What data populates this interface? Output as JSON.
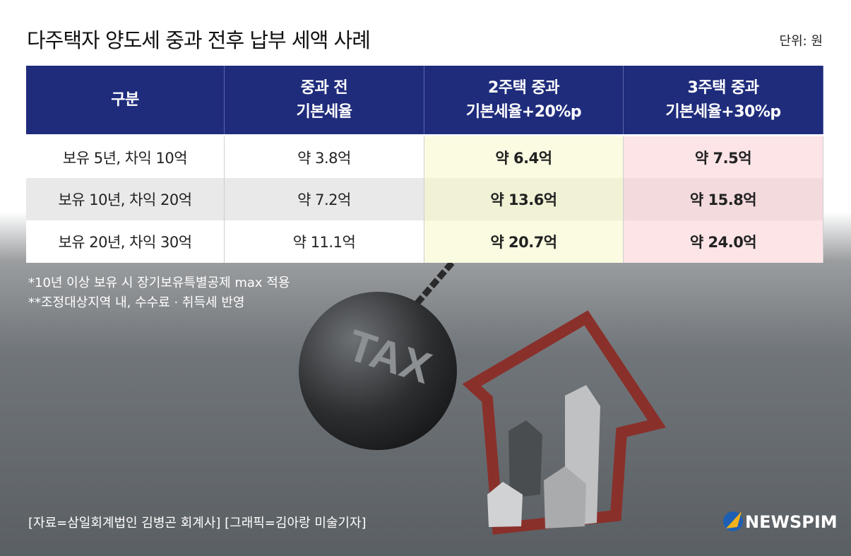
{
  "header": {
    "title": "다주택자 양도세 중과 전후 납부 세액 사례",
    "unit": "단위: 원"
  },
  "table": {
    "columns": [
      [
        "구분"
      ],
      [
        "중과 전",
        "기본세율"
      ],
      [
        "2주택 중과",
        "기본세율+20%p"
      ],
      [
        "3주택 중과",
        "기본세율+30%p"
      ]
    ],
    "rows": [
      [
        "보유 5년, 차익 10억",
        "약 3.8억",
        "약 6.4억",
        "약 7.5억"
      ],
      [
        "보유 10년, 차익 20억",
        "약 7.2억",
        "약 13.6억",
        "약 15.8억"
      ],
      [
        "보유 20년, 차익 30억",
        "약 11.1억",
        "약 20.7억",
        "약 24.0억"
      ]
    ]
  },
  "notes": [
    "*10년 이상 보유 시 장기보유특별공제 max 적용",
    "**조정대상지역 내, 수수료 · 취득세 반영"
  ],
  "illustration": {
    "ball_label": "TAX"
  },
  "source": "[자료=삼일회계법인 김병곤 회계사] [그래픽=김아랑 미술기자]",
  "logo": "NEWSPIM"
}
